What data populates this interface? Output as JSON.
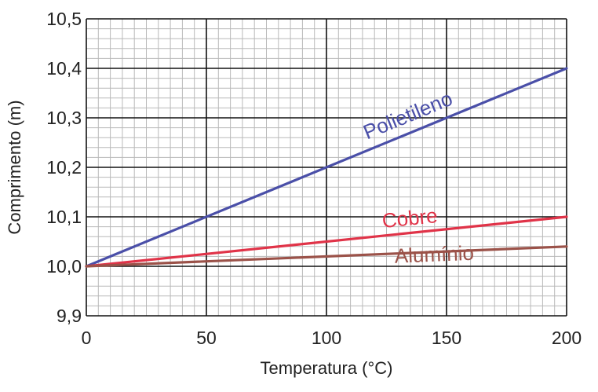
{
  "chart_data": {
    "type": "line",
    "xlabel": "Temperatura (°C)",
    "ylabel": "Comprimento (m)",
    "xlim": [
      0,
      200
    ],
    "ylim": [
      9.9,
      10.5
    ],
    "x_ticks": [
      0,
      50,
      100,
      150,
      200
    ],
    "x_tick_labels": [
      "0",
      "50",
      "100",
      "150",
      "200"
    ],
    "y_ticks": [
      9.9,
      10.0,
      10.1,
      10.2,
      10.3,
      10.4,
      10.5
    ],
    "y_tick_labels": [
      "9,9",
      "10,0",
      "10,1",
      "10,2",
      "10,3",
      "10,4",
      "10,5"
    ],
    "grid": true,
    "legend": "inline labels",
    "series": [
      {
        "name": "Polietileno",
        "color": "#4a4fa8",
        "x": [
          0,
          200
        ],
        "values": [
          10.0,
          10.4
        ]
      },
      {
        "name": "Cobre",
        "color": "#e03348",
        "x": [
          0,
          200
        ],
        "values": [
          10.0,
          10.1
        ]
      },
      {
        "name": "Alumínio",
        "color": "#9b5249",
        "x": [
          0,
          200
        ],
        "values": [
          10.0,
          10.04
        ]
      }
    ]
  }
}
